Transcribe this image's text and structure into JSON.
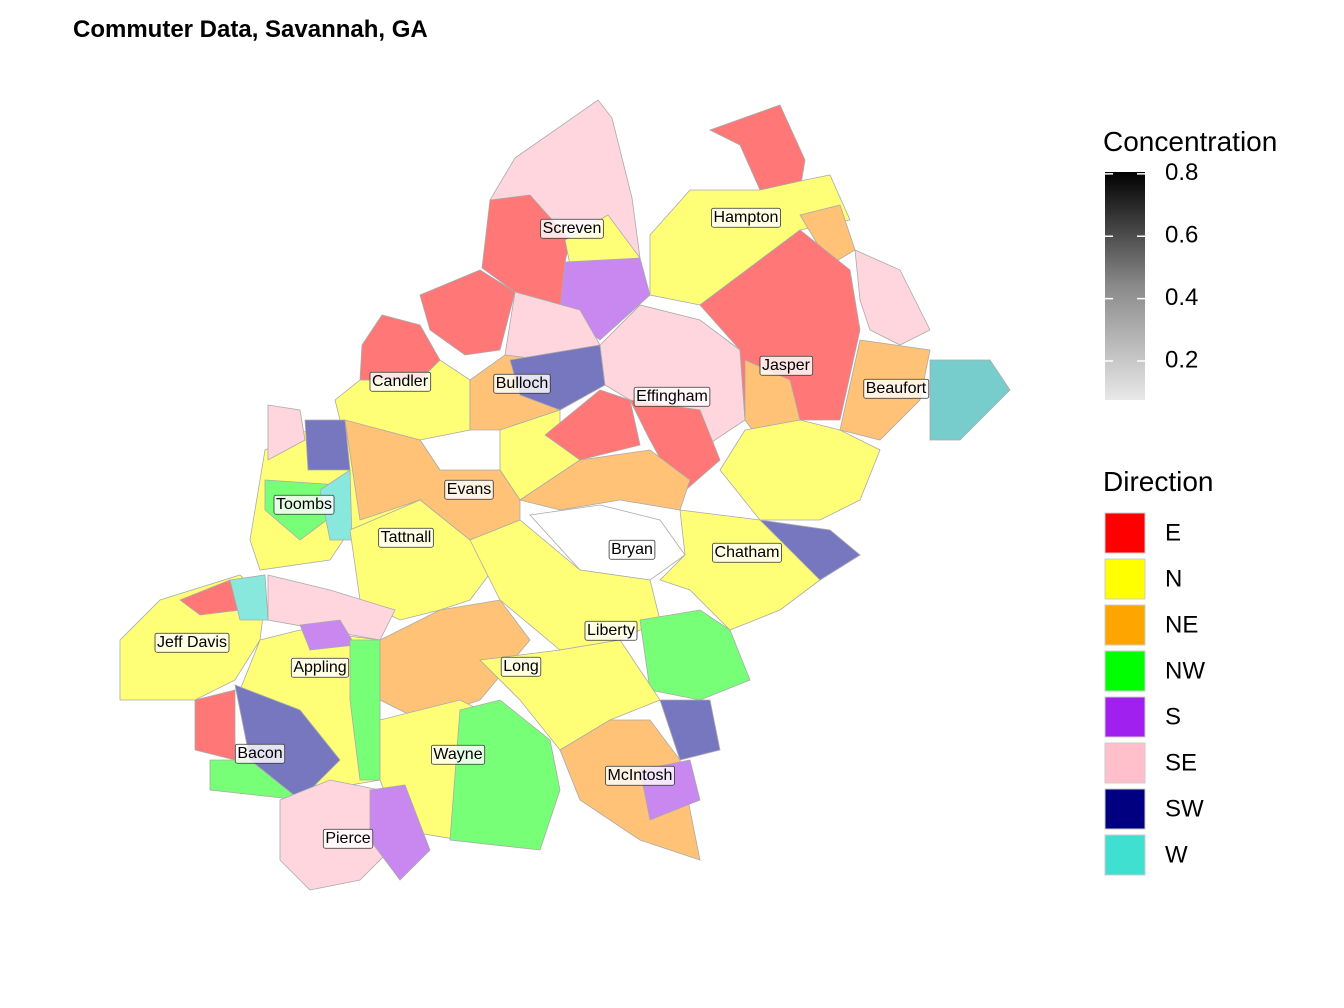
{
  "title": "Commuter Data, Savannah, GA",
  "counties": [
    "Screven",
    "Hampton",
    "Candler",
    "Bulloch",
    "Effingham",
    "Jasper",
    "Beaufort",
    "Toombs",
    "Evans",
    "Tattnall",
    "Bryan",
    "Chatham",
    "Jeff Davis",
    "Appling",
    "Liberty",
    "Long",
    "Bacon",
    "Wayne",
    "McIntosh",
    "Pierce"
  ],
  "legend": {
    "concentration": {
      "title": "Concentration",
      "range": [
        0.075,
        0.806
      ],
      "ticks": [
        0.2,
        0.4,
        0.6,
        0.8
      ]
    },
    "direction": {
      "title": "Direction",
      "items": [
        {
          "name": "E",
          "color": "#ff0000"
        },
        {
          "name": "N",
          "color": "#ffff00"
        },
        {
          "name": "NE",
          "color": "#ffa500"
        },
        {
          "name": "NW",
          "color": "#00ff00"
        },
        {
          "name": "S",
          "color": "#a020f0"
        },
        {
          "name": "SE",
          "color": "#ffc0cb"
        },
        {
          "name": "SW",
          "color": "#000080"
        },
        {
          "name": "W",
          "color": "#40e0d0"
        }
      ]
    }
  }
}
